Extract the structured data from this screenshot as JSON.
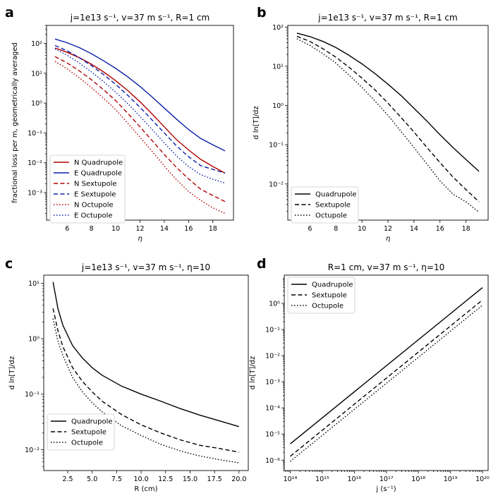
{
  "chart_data": [
    {
      "panel": "a",
      "type": "line",
      "title": "j=1e13 s⁻¹, v=37 m s⁻¹, R=1 cm",
      "xlabel": "η",
      "ylabel": "fractional loss per m, geometrically averaged",
      "xscale": "linear",
      "yscale": "log",
      "xlim": [
        4.3,
        19.7
      ],
      "ylim": [
        0.00012,
        400
      ],
      "xticks": [
        6,
        8,
        10,
        12,
        14,
        16,
        18
      ],
      "xticklabels": [
        "6",
        "8",
        "10",
        "12",
        "14",
        "16",
        "18"
      ],
      "yticks": [
        0.001,
        0.01,
        0.1,
        1,
        10,
        100
      ],
      "yticklabels": [
        "10⁻³",
        "10⁻²",
        "10⁻¹",
        "10⁰",
        "10¹",
        "10²"
      ],
      "legend_position": "lower-left",
      "x": [
        5,
        6,
        7,
        8,
        9,
        10,
        11,
        12,
        13,
        14,
        15,
        16,
        17,
        18,
        19
      ],
      "series": [
        {
          "name": "N Quadrupole",
          "color": "#b00000",
          "dash": "solid",
          "values": [
            70,
            50,
            33,
            20,
            11,
            5.6,
            2.6,
            1.1,
            0.43,
            0.16,
            0.06,
            0.027,
            0.013,
            0.0075,
            0.0045
          ]
        },
        {
          "name": "E Quadrupole",
          "color": "#0a1fa8",
          "dash": "solid",
          "values": [
            140,
            105,
            72,
            45,
            26,
            14.5,
            7.5,
            3.6,
            1.6,
            0.68,
            0.29,
            0.13,
            0.065,
            0.04,
            0.025
          ]
        },
        {
          "name": "N Sextupole",
          "color": "#b00000",
          "dash": "dashed",
          "values": [
            36,
            22,
            12,
            6,
            2.8,
            1.2,
            0.45,
            0.16,
            0.055,
            0.019,
            0.007,
            0.0029,
            0.0013,
            0.0008,
            0.0005
          ]
        },
        {
          "name": "E Sextupole",
          "color": "#0a1fa8",
          "dash": "dashed",
          "values": [
            85,
            56,
            33,
            18,
            9,
            4.2,
            1.8,
            0.72,
            0.27,
            0.1,
            0.037,
            0.016,
            0.008,
            0.006,
            0.0045
          ]
        },
        {
          "name": "N Octupole",
          "color": "#b00000",
          "dash": "dotted",
          "values": [
            25,
            14,
            7,
            3.3,
            1.45,
            0.6,
            0.21,
            0.072,
            0.024,
            0.0078,
            0.0027,
            0.0011,
            0.00055,
            0.00031,
            0.0002
          ]
        },
        {
          "name": "E Octupole",
          "color": "#0a1fa8",
          "dash": "dotted",
          "values": [
            65,
            40,
            22,
            11,
            5.2,
            2.3,
            0.95,
            0.36,
            0.13,
            0.046,
            0.017,
            0.0075,
            0.004,
            0.0028,
            0.0021
          ]
        }
      ]
    },
    {
      "panel": "b",
      "type": "line",
      "title": "j=1e13 s⁻¹, v=37 m s⁻¹, R=1 cm",
      "xlabel": "η",
      "ylabel": "d ln[T]/dz",
      "xscale": "linear",
      "yscale": "log",
      "xlim": [
        4.3,
        19.7
      ],
      "ylim": [
        0.0012,
        110
      ],
      "xticks": [
        6,
        8,
        10,
        12,
        14,
        16,
        18
      ],
      "xticklabels": [
        "6",
        "8",
        "10",
        "12",
        "14",
        "16",
        "18"
      ],
      "yticks": [
        0.01,
        0.1,
        1,
        10,
        100
      ],
      "yticklabels": [
        "10⁻²",
        "10⁻¹",
        "10⁰",
        "10¹",
        "10²"
      ],
      "legend_position": "lower-left",
      "x": [
        5,
        6,
        7,
        8,
        9,
        10,
        11,
        12,
        13,
        14,
        15,
        16,
        17,
        18,
        19
      ],
      "series": [
        {
          "name": "Quadrupole",
          "color": "#000000",
          "dash": "solid",
          "values": [
            70,
            57,
            43,
            30,
            19,
            11.5,
            6.5,
            3.5,
            1.8,
            0.85,
            0.4,
            0.18,
            0.085,
            0.042,
            0.021
          ]
        },
        {
          "name": "Sextupole",
          "color": "#000000",
          "dash": "dashed",
          "values": [
            58,
            43,
            28,
            17,
            9.5,
            5,
            2.5,
            1.15,
            0.5,
            0.21,
            0.085,
            0.035,
            0.015,
            0.0072,
            0.0035
          ]
        },
        {
          "name": "Octupole",
          "color": "#000000",
          "dash": "dotted",
          "values": [
            50,
            34,
            21,
            12,
            6,
            2.9,
            1.3,
            0.56,
            0.22,
            0.085,
            0.032,
            0.012,
            0.0055,
            0.0035,
            0.0019
          ]
        }
      ]
    },
    {
      "panel": "c",
      "type": "line",
      "title": "j=1e13 s⁻¹, v=37 m s⁻¹, η=10",
      "xlabel": "R (cm)",
      "ylabel": "d ln[T]/dz",
      "xscale": "linear",
      "yscale": "log",
      "xlim": [
        0.05,
        20.95
      ],
      "ylim": [
        0.0042,
        14
      ],
      "xticks": [
        2.5,
        5.0,
        7.5,
        10.0,
        12.5,
        15.0,
        17.5,
        20.0
      ],
      "xticklabels": [
        "2.5",
        "5.0",
        "7.5",
        "10.0",
        "12.5",
        "15.0",
        "17.5",
        "20.0"
      ],
      "yticks": [
        0.01,
        0.1,
        1,
        10
      ],
      "yticklabels": [
        "10⁻²",
        "10⁻¹",
        "10⁰",
        "10¹"
      ],
      "legend_position": "lower-left",
      "x": [
        1,
        1.5,
        2,
        3,
        4,
        5,
        6,
        8,
        10,
        12,
        14,
        16,
        18,
        20
      ],
      "series": [
        {
          "name": "Quadrupole",
          "color": "#000000",
          "dash": "solid",
          "values": [
            10.5,
            3.5,
            1.75,
            0.75,
            0.45,
            0.3,
            0.22,
            0.14,
            0.1,
            0.075,
            0.055,
            0.042,
            0.033,
            0.026
          ]
        },
        {
          "name": "Sextupole",
          "color": "#000000",
          "dash": "dashed",
          "values": [
            3.5,
            1.4,
            0.72,
            0.3,
            0.17,
            0.11,
            0.075,
            0.043,
            0.028,
            0.02,
            0.015,
            0.012,
            0.0105,
            0.009
          ]
        },
        {
          "name": "Octupole",
          "color": "#000000",
          "dash": "dotted",
          "values": [
            2.3,
            0.9,
            0.5,
            0.2,
            0.11,
            0.07,
            0.048,
            0.027,
            0.018,
            0.0125,
            0.0095,
            0.0077,
            0.0066,
            0.0058
          ]
        }
      ]
    },
    {
      "panel": "d",
      "type": "line",
      "title": "R=1 cm, v=37 m s⁻¹, η=10",
      "xlabel": "j (s⁻¹)",
      "ylabel": "d ln[T]/dz",
      "xscale": "log",
      "yscale": "log",
      "xlim": [
        65000000000000.0,
        1.5e+20
      ],
      "ylim": [
        4e-07,
        12
      ],
      "xticks": [
        100000000000000.0,
        1000000000000000.0,
        1e+16,
        1e+17,
        1e+18,
        1e+19,
        1e+20
      ],
      "xticklabels": [
        "10¹⁴",
        "10¹⁵",
        "10¹⁶",
        "10¹⁷",
        "10¹⁸",
        "10¹⁹",
        "10²⁰"
      ],
      "yticks": [
        1e-06,
        1e-05,
        0.0001,
        0.001,
        0.01,
        0.1,
        1
      ],
      "yticklabels": [
        "10⁻⁶",
        "10⁻⁵",
        "10⁻⁴",
        "10⁻³",
        "10⁻²",
        "10⁻¹",
        "10⁰"
      ],
      "legend_position": "top-left",
      "x": [
        100000000000000.0,
        1e+20
      ],
      "series": [
        {
          "name": "Quadrupole",
          "color": "#000000",
          "dash": "solid",
          "values": [
            4.2e-06,
            4.0
          ]
        },
        {
          "name": "Sextupole",
          "color": "#000000",
          "dash": "dashed",
          "values": [
            1.4e-06,
            1.35
          ]
        },
        {
          "name": "Octupole",
          "color": "#000000",
          "dash": "dotted",
          "values": [
            9e-07,
            0.85
          ]
        }
      ]
    }
  ]
}
